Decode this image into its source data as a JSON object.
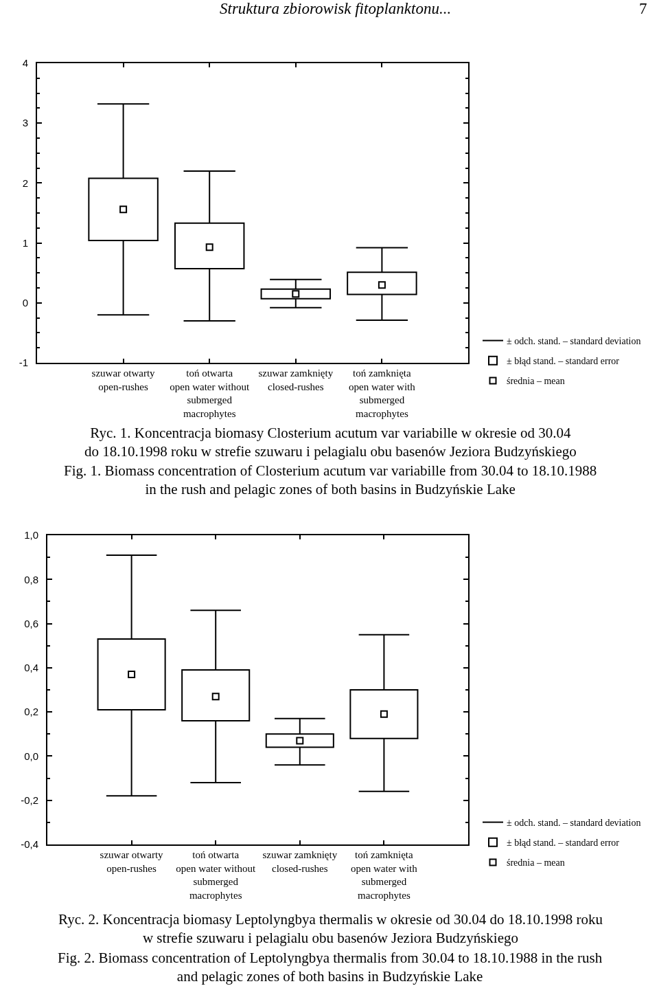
{
  "chart_data": [
    {
      "type": "box",
      "categories": [
        "szuwar otwarty\nopen-rushes",
        "toń otwarta\nopen water without\nsubmerged\nmacrophytes",
        "szuwar zamknięty\nclosed-rushes",
        "toń zamknięta\nopen water with\nsubmerged\nmacrophytes"
      ],
      "boxes": [
        {
          "low": -0.2,
          "q1": 1.04,
          "mean": 1.56,
          "q3": 2.08,
          "high": 3.32
        },
        {
          "low": -0.3,
          "q1": 0.57,
          "mean": 0.93,
          "q3": 1.33,
          "high": 2.2
        },
        {
          "low": -0.08,
          "q1": 0.07,
          "mean": 0.15,
          "q3": 0.23,
          "high": 0.39
        },
        {
          "low": -0.29,
          "q1": 0.14,
          "mean": 0.3,
          "q3": 0.51,
          "high": 0.92
        }
      ],
      "ylim": [
        -1,
        4
      ],
      "yticks": [
        -1,
        {
          "value": -0.75,
          "label": null
        },
        {
          "value": -0.5,
          "label": null
        },
        {
          "value": -0.25,
          "label": null
        },
        0,
        {
          "value": 0.25,
          "label": null
        },
        {
          "value": 0.5,
          "label": null
        },
        {
          "value": 0.75,
          "label": null
        },
        1,
        {
          "value": 1.25,
          "label": null
        },
        {
          "value": 1.5,
          "label": null
        },
        {
          "value": 1.75,
          "label": null
        },
        2,
        {
          "value": 2.25,
          "label": null
        },
        {
          "value": 2.5,
          "label": null
        },
        {
          "value": 2.75,
          "label": null
        },
        3,
        {
          "value": 3.25,
          "label": null
        },
        {
          "value": 3.5,
          "label": null
        },
        {
          "value": 3.75,
          "label": null
        },
        4
      ],
      "marker": "square",
      "annotations": [
        "Struktura zbiorowisk fitoplanktonu...",
        "7",
        "± odch. stand. – standard deviation",
        "± błąd stand. – standard error",
        "średnia – mean",
        "Ryc. 1. Koncentracja biomasy Closterium acutum var variabille w okresie od 30.04\ndo 18.10.1998 roku w strefie szuwaru i pelagialu obu basenów Jeziora Budzyńskiego",
        "Fig. 1. Biomass concentration of Closterium acutum var variabille from 30.04 to 18.10.1988\nin the rush and pelagic zones of both basins in Budzyńskie Lake"
      ]
    },
    {
      "type": "box",
      "categories": [
        "szuwar otwarty\nopen-rushes",
        "toń otwarta\nopen water without\nsubmerged\nmacrophytes",
        "szuwar zamknięty\nclosed-rushes",
        "toń zamknięta\nopen water with\nsubmerged\nmacrophytes"
      ],
      "boxes": [
        {
          "low": -0.18,
          "q1": 0.21,
          "mean": 0.37,
          "q3": 0.53,
          "high": 0.91
        },
        {
          "low": -0.12,
          "q1": 0.16,
          "mean": 0.27,
          "q3": 0.39,
          "high": 0.66
        },
        {
          "low": -0.04,
          "q1": 0.04,
          "mean": 0.07,
          "q3": 0.1,
          "high": 0.17
        },
        {
          "low": -0.16,
          "q1": 0.08,
          "mean": 0.19,
          "q3": 0.3,
          "high": 0.55
        }
      ],
      "ylim": [
        -0.4,
        1.0
      ],
      "yticks": [
        {
          "value": -0.4,
          "label": "-0,4"
        },
        {
          "value": -0.3,
          "label": null
        },
        {
          "value": -0.2,
          "label": "-0,2"
        },
        {
          "value": -0.1,
          "label": null
        },
        {
          "value": 0,
          "label": "0,0"
        },
        {
          "value": 0.1,
          "label": null
        },
        {
          "value": 0.2,
          "label": "0,2"
        },
        {
          "value": 0.3,
          "label": null
        },
        {
          "value": 0.4,
          "label": "0,4"
        },
        {
          "value": 0.5,
          "label": null
        },
        {
          "value": 0.6,
          "label": "0,6"
        },
        {
          "value": 0.7,
          "label": null
        },
        {
          "value": 0.8,
          "label": "0,8"
        },
        {
          "value": 0.9,
          "label": null
        },
        {
          "value": 1.0,
          "label": "1,0"
        }
      ],
      "marker": "square",
      "annotations": [
        "± odch. stand. – standard deviation",
        "± błąd stand. – standard error",
        "średnia – mean",
        "Ryc. 2. Koncentracja biomasy Leptolyngbya thermalis w okresie od 30.04 do 18.10.1998 roku\nw strefie szuwaru i pelagialu obu basenów Jeziora Budzyńskiego",
        "Fig. 2. Biomass concentration of Leptolyngbya thermalis from 30.04 to 18.10.1988 in the rush\nand pelagic zones of both basins in Budzyńskie Lake"
      ]
    }
  ]
}
